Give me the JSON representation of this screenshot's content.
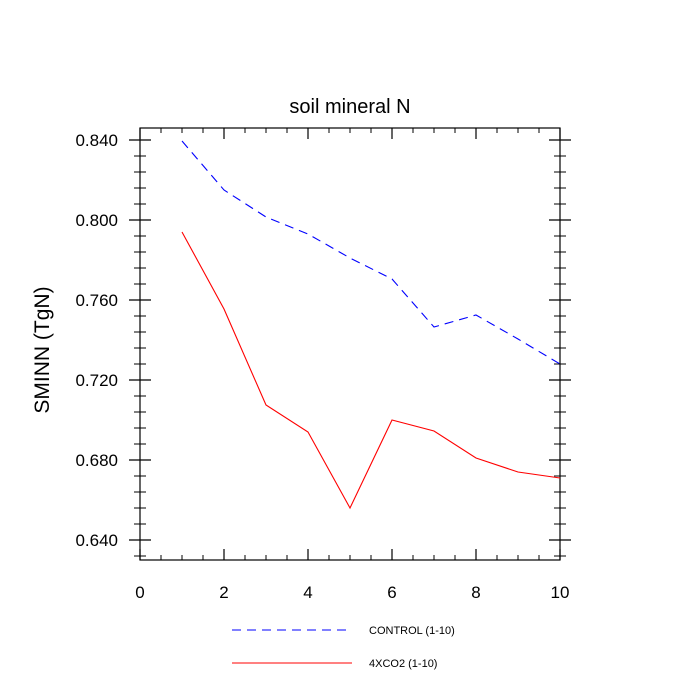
{
  "chart_data": {
    "type": "line",
    "title": "soil mineral N",
    "xlabel": "",
    "ylabel": "SMINN  (TgN)",
    "xlim": [
      0,
      10
    ],
    "ylim": [
      0.63,
      0.846
    ],
    "x_ticks": [
      0,
      2,
      4,
      6,
      8,
      10
    ],
    "x_tick_labels": [
      "0",
      "2",
      "4",
      "6",
      "8",
      "10"
    ],
    "y_ticks": [
      0.64,
      0.68,
      0.72,
      0.76,
      0.8,
      0.84
    ],
    "y_tick_labels": [
      "0.640",
      "0.680",
      "0.720",
      "0.760",
      "0.800",
      "0.840"
    ],
    "x": [
      1,
      2,
      3,
      4,
      5,
      6,
      7,
      8,
      9,
      10
    ],
    "series": [
      {
        "name": "CONTROL (1-10)",
        "color": "#0000ff",
        "dash": "dashed",
        "values": [
          0.8395,
          0.815,
          0.8015,
          0.793,
          0.781,
          0.7705,
          0.7465,
          0.7525,
          0.7405,
          0.728
        ]
      },
      {
        "name": "4XCO2 (1-10)",
        "color": "#ff0000",
        "dash": "solid",
        "values": [
          0.794,
          0.7555,
          0.7075,
          0.694,
          0.656,
          0.7,
          0.6945,
          0.681,
          0.674,
          0.671
        ]
      }
    ],
    "legend_position": "bottom"
  }
}
